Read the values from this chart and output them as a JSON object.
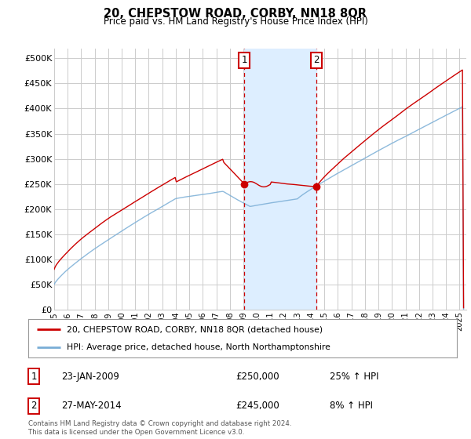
{
  "title": "20, CHEPSTOW ROAD, CORBY, NN18 8QR",
  "subtitle": "Price paid vs. HM Land Registry's House Price Index (HPI)",
  "ylabel_ticks": [
    "£0",
    "£50K",
    "£100K",
    "£150K",
    "£200K",
    "£250K",
    "£300K",
    "£350K",
    "£400K",
    "£450K",
    "£500K"
  ],
  "ytick_values": [
    0,
    50000,
    100000,
    150000,
    200000,
    250000,
    300000,
    350000,
    400000,
    450000,
    500000
  ],
  "ylim": [
    0,
    520000
  ],
  "xlim_start": 1995.0,
  "xlim_end": 2025.5,
  "sale1": {
    "date_num": 2009.07,
    "price": 250000,
    "label": "1",
    "hpi_pct": "25% ↑ HPI",
    "date_str": "23-JAN-2009"
  },
  "sale2": {
    "date_num": 2014.41,
    "price": 245000,
    "label": "2",
    "hpi_pct": "8% ↑ HPI",
    "date_str": "27-MAY-2014"
  },
  "line_color_red": "#cc0000",
  "line_color_blue": "#7aaed6",
  "shade_color": "#ddeeff",
  "vline_color": "#cc0000",
  "box_color": "#cc0000",
  "grid_color": "#cccccc",
  "bg_color": "#ffffff",
  "legend_label_red": "20, CHEPSTOW ROAD, CORBY, NN18 8QR (detached house)",
  "legend_label_blue": "HPI: Average price, detached house, North Northamptonshire",
  "footnote": "Contains HM Land Registry data © Crown copyright and database right 2024.\nThis data is licensed under the Open Government Licence v3.0.",
  "xtick_years": [
    1995,
    1996,
    1997,
    1998,
    1999,
    2000,
    2001,
    2002,
    2003,
    2004,
    2005,
    2006,
    2007,
    2008,
    2009,
    2010,
    2011,
    2012,
    2013,
    2014,
    2015,
    2016,
    2017,
    2018,
    2019,
    2020,
    2021,
    2022,
    2023,
    2024,
    2025
  ]
}
